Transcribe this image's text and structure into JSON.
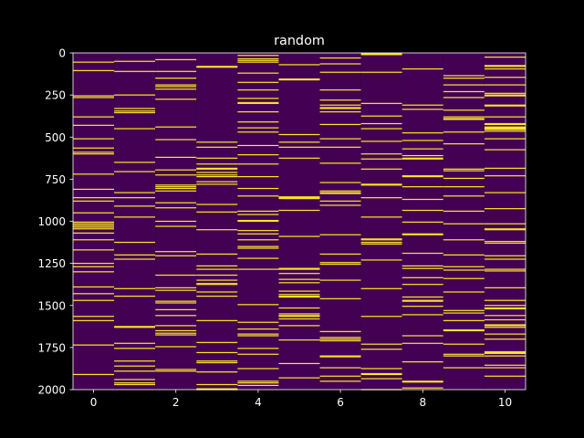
{
  "chart_data": {
    "type": "heatmap",
    "title": "random",
    "xlabel": "",
    "ylabel": "",
    "colormap": "viridis",
    "colors": {
      "low": "#440154",
      "high": "#fde725",
      "background": "#000000",
      "foreground": "#ffffff"
    },
    "columns": 11,
    "rows": 2000,
    "xlim": [
      -0.5,
      10.5
    ],
    "ylim": [
      2000,
      0
    ],
    "x_ticks": [
      0,
      2,
      4,
      6,
      8,
      10
    ],
    "y_ticks": [
      0,
      250,
      500,
      750,
      1000,
      1250,
      1500,
      1750,
      2000
    ],
    "grid": false,
    "legend": "none",
    "highlighted_rows": [
      [
        55,
        105,
        255,
        265,
        380,
        430,
        510,
        565,
        590,
        600,
        720,
        810,
        860,
        880,
        950,
        1005,
        1015,
        1025,
        1035,
        1045,
        1070,
        1110,
        1170,
        1250,
        1270,
        1300,
        1390,
        1430,
        1470,
        1565,
        1590,
        1735,
        1910
      ],
      [
        50,
        110,
        250,
        330,
        345,
        355,
        450,
        650,
        705,
        830,
        860,
        910,
        975,
        1125,
        1200,
        1225,
        1400,
        1445,
        1625,
        1630,
        1725,
        1755,
        1830,
        1860,
        1890,
        1940,
        1960,
        1970
      ],
      [
        40,
        110,
        150,
        190,
        200,
        215,
        275,
        440,
        515,
        620,
        695,
        725,
        785,
        795,
        805,
        820,
        890,
        920,
        1000,
        1030,
        1180,
        1205,
        1320,
        1395,
        1410,
        1475,
        1485,
        1525,
        1560,
        1620,
        1650,
        1665,
        1675,
        1745,
        1880,
        1890
      ],
      [
        80,
        85,
        530,
        560,
        625,
        660,
        685,
        690,
        710,
        725,
        735,
        765,
        780,
        900,
        945,
        1050,
        1195,
        1265,
        1285,
        1320,
        1350,
        1370,
        1375,
        1420,
        1445,
        1590,
        1720,
        1780,
        1830,
        1840,
        1895,
        1970,
        1995,
        2000
      ],
      [
        15,
        35,
        45,
        55,
        120,
        175,
        220,
        270,
        295,
        300,
        350,
        410,
        445,
        470,
        550,
        605,
        660,
        735,
        805,
        850,
        940,
        960,
        995,
        1000,
        1055,
        1075,
        1110,
        1150,
        1160,
        1220,
        1285,
        1495,
        1600,
        1640,
        1670,
        1680,
        1755,
        1790,
        1875,
        1950,
        1960,
        1975
      ],
      [
        70,
        155,
        160,
        485,
        530,
        560,
        625,
        855,
        860,
        865,
        935,
        1090,
        1280,
        1285,
        1310,
        1345,
        1365,
        1415,
        1435,
        1445,
        1450,
        1515,
        1550,
        1560,
        1565,
        1580,
        1620,
        1705,
        1845,
        1930
      ],
      [
        30,
        65,
        115,
        220,
        280,
        310,
        325,
        330,
        350,
        425,
        510,
        560,
        655,
        770,
        820,
        830,
        835,
        880,
        905,
        1080,
        1195,
        1245,
        1255,
        1350,
        1460,
        1655,
        1690,
        1700,
        1710,
        1800,
        1805,
        1870,
        1920,
        1950
      ],
      [
        5,
        10,
        115,
        300,
        375,
        420,
        450,
        525,
        600,
        630,
        690,
        780,
        785,
        860,
        975,
        1105,
        1110,
        1125,
        1135,
        1230,
        1400,
        1565,
        1730,
        1760,
        1875,
        1905,
        1910,
        1935,
        2000
      ],
      [
        95,
        310,
        335,
        475,
        520,
        570,
        610,
        625,
        630,
        730,
        735,
        795,
        870,
        935,
        1005,
        1075,
        1080,
        1190,
        1265,
        1280,
        1335,
        1375,
        1450,
        1470,
        1475,
        1505,
        1555,
        1680,
        1725,
        1835,
        1950,
        1955,
        1990
      ],
      [
        135,
        150,
        190,
        230,
        265,
        340,
        380,
        390,
        395,
        470,
        540,
        690,
        700,
        745,
        795,
        850,
        940,
        1015,
        1110,
        1200,
        1270,
        1290,
        1340,
        1420,
        1530,
        1545,
        1590,
        1645,
        1650,
        1730,
        1790,
        1800,
        1870
      ],
      [
        25,
        75,
        80,
        95,
        145,
        190,
        240,
        250,
        255,
        310,
        315,
        380,
        420,
        425,
        440,
        445,
        450,
        455,
        465,
        510,
        575,
        685,
        730,
        830,
        925,
        1015,
        1045,
        1050,
        1120,
        1130,
        1205,
        1225,
        1285,
        1295,
        1395,
        1470,
        1500,
        1515,
        1520,
        1560,
        1585,
        1615,
        1620,
        1630,
        1670,
        1700,
        1775,
        1780,
        1785,
        1800,
        1855,
        1870,
        1920
      ]
    ]
  }
}
